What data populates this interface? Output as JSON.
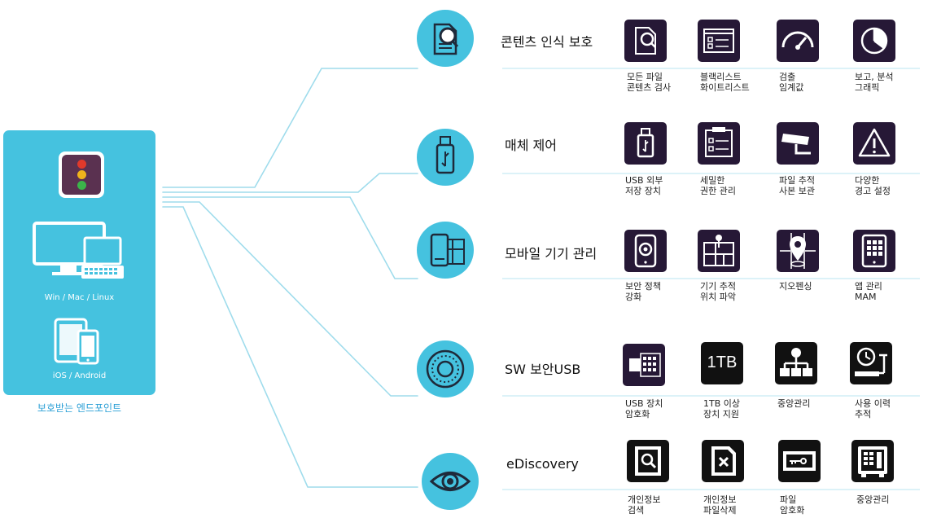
{
  "endpoints": {
    "desktop_label": "Win / Mac / Linux",
    "mobile_label": "iOS / Android",
    "caption": "보호받는 엔드포인트"
  },
  "features": [
    {
      "title": "콘텐츠 인식 보호",
      "items": [
        {
          "icon": "document-search-icon",
          "lines": [
            "모든 파일",
            "콘텐츠 검사"
          ]
        },
        {
          "icon": "list-checkbox-icon",
          "lines": [
            "블랙리스트",
            "화이트리스트"
          ]
        },
        {
          "icon": "gauge-icon",
          "lines": [
            "검출",
            "임계값"
          ]
        },
        {
          "icon": "pie-chart-icon",
          "lines": [
            "보고, 분석",
            "그래픽"
          ]
        }
      ]
    },
    {
      "title": "매체 제어",
      "items": [
        {
          "icon": "usb-drive-icon",
          "lines": [
            "USB 외부",
            "저장 장치"
          ]
        },
        {
          "icon": "permission-form-icon",
          "lines": [
            "세밀한",
            "권한 관리"
          ]
        },
        {
          "icon": "camera-track-icon",
          "lines": [
            "파일 추적",
            "사본 보관"
          ]
        },
        {
          "icon": "warning-icon",
          "lines": [
            "다양한",
            "경고 설정"
          ]
        }
      ]
    },
    {
      "title": "모바일 기기 관리",
      "items": [
        {
          "icon": "phone-lock-icon",
          "lines": [
            "보안 정책",
            "강화"
          ]
        },
        {
          "icon": "map-pin-icon",
          "lines": [
            "기기 추적",
            "위치 파악"
          ]
        },
        {
          "icon": "geofence-pin-icon",
          "lines": [
            "지오펜싱"
          ]
        },
        {
          "icon": "app-grid-icon",
          "lines": [
            "앱 관리",
            "MAM"
          ]
        }
      ]
    },
    {
      "title": "SW 보안USB",
      "items": [
        {
          "icon": "encrypted-usb-icon",
          "lines": [
            "USB 장치",
            "암호화"
          ]
        },
        {
          "icon": "1tb-icon",
          "tile_text": "1TB",
          "lines": [
            "1TB 이상",
            "장치 지원"
          ]
        },
        {
          "icon": "hierarchy-icon",
          "lines": [
            "중앙관리"
          ]
        },
        {
          "icon": "clock-history-icon",
          "lines": [
            "사용 이력",
            "추적"
          ]
        }
      ]
    },
    {
      "title": "eDiscovery",
      "items": [
        {
          "icon": "search-document-icon",
          "lines": [
            "개인정보",
            "검색"
          ]
        },
        {
          "icon": "delete-document-icon",
          "lines": [
            "개인정보",
            "파일삭제"
          ]
        },
        {
          "icon": "file-key-icon",
          "lines": [
            "파일",
            "암호화"
          ]
        },
        {
          "icon": "safe-icon",
          "lines": [
            "중앙관리"
          ]
        }
      ]
    }
  ],
  "colors": {
    "accent": "#45c2df",
    "tile_purple": "#261836",
    "tile_black": "#111111",
    "traffic_red": "#e0392b",
    "traffic_yellow": "#f0b31b",
    "traffic_green": "#3bb44a"
  }
}
